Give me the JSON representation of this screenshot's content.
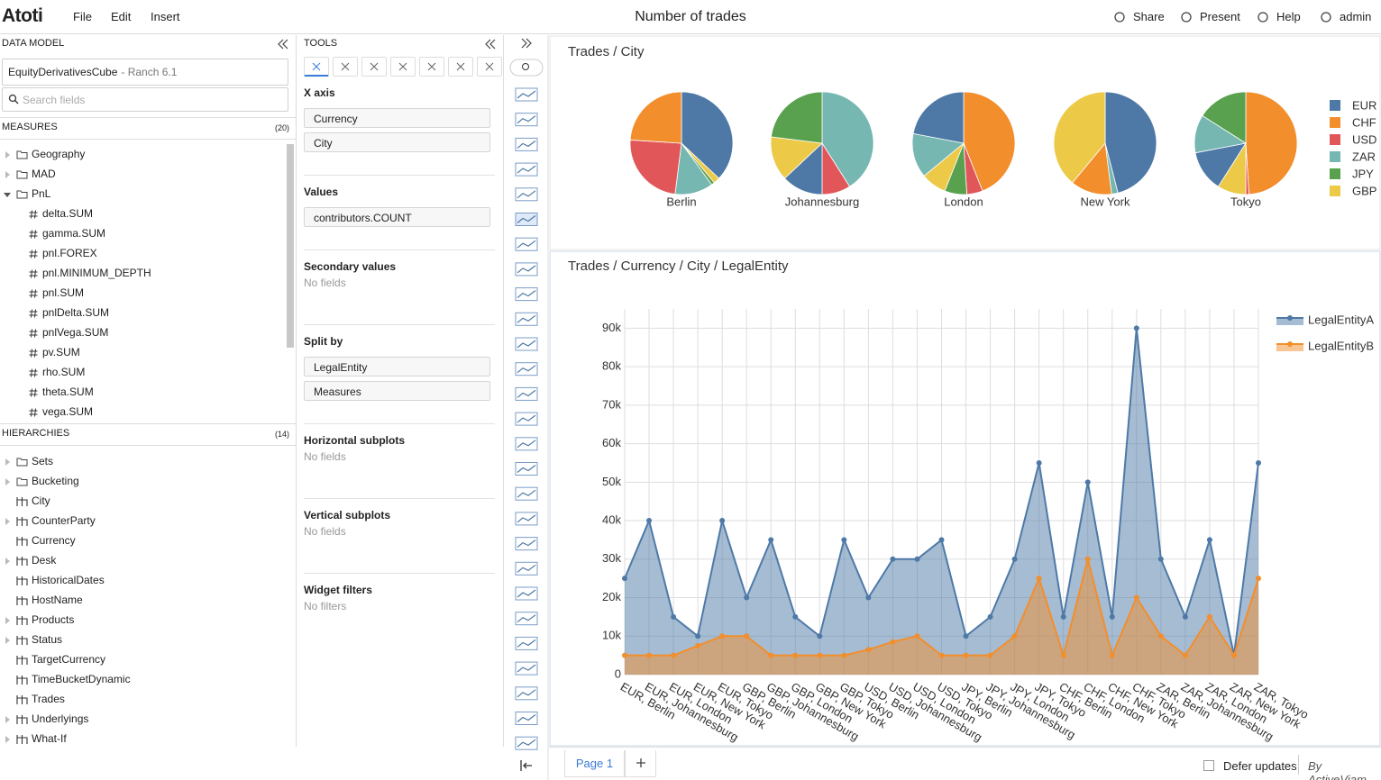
{
  "header": {
    "logo": "Atoti",
    "menu": [
      "File",
      "Edit",
      "Insert"
    ],
    "title": "Number of trades",
    "actions": [
      "Share",
      "Present",
      "Help",
      "admin"
    ]
  },
  "data_model": {
    "title": "DATA MODEL",
    "cube": "EquityDerivativesCube",
    "cube_detail": "- Ranch 6.1",
    "search_placeholder": "Search fields",
    "measures": {
      "label": "MEASURES",
      "count": "(20)",
      "folders": [
        "Geography",
        "MAD",
        "PnL"
      ],
      "items": [
        "delta.SUM",
        "gamma.SUM",
        "pnl.FOREX",
        "pnl.MINIMUM_DEPTH",
        "pnl.SUM",
        "pnlDelta.SUM",
        "pnlVega.SUM",
        "pv.SUM",
        "rho.SUM",
        "theta.SUM",
        "vega.SUM"
      ]
    },
    "hierarchies": {
      "label": "HIERARCHIES",
      "count": "(14)",
      "folders": [
        "Sets",
        "Bucketing"
      ],
      "items": [
        "City",
        "CounterParty",
        "Currency",
        "Desk",
        "HistoricalDates",
        "HostName",
        "Products",
        "Status",
        "TargetCurrency",
        "TimeBucketDynamic",
        "Trades",
        "Underlyings",
        "What-If"
      ]
    }
  },
  "tools": {
    "title": "TOOLS",
    "sections": [
      {
        "label": "X axis",
        "fields": [
          "Currency",
          "City"
        ]
      },
      {
        "label": "Values",
        "fields": [
          "contributors.COUNT"
        ]
      },
      {
        "label": "Secondary values",
        "empty": "No fields"
      },
      {
        "label": "Split by",
        "fields": [
          "LegalEntity",
          "Measures"
        ]
      },
      {
        "label": "Horizontal subplots",
        "empty": "No fields"
      },
      {
        "label": "Vertical subplots",
        "empty": "No fields"
      },
      {
        "label": "Widget filters",
        "empty": "No filters"
      }
    ]
  },
  "footer": {
    "tab": "Page 1",
    "defer": "Defer updates",
    "brand": "By ActiveViam"
  },
  "chart_data": [
    {
      "type": "pie",
      "title": "Trades / City",
      "legend": {
        "position": "right",
        "entries": [
          "EUR",
          "CHF",
          "USD",
          "ZAR",
          "JPY",
          "GBP"
        ],
        "colors": [
          "#4e79a7",
          "#f28e2b",
          "#e15759",
          "#76b7b2",
          "#59a14f",
          "#edc948"
        ]
      },
      "pies": [
        {
          "label": "Berlin",
          "categories": [
            "EUR",
            "GBP",
            "JPY",
            "ZAR",
            "USD",
            "CHF"
          ],
          "values": [
            37,
            2,
            1,
            12,
            24,
            24
          ]
        },
        {
          "label": "Johannesburg",
          "categories": [
            "ZAR",
            "USD",
            "EUR",
            "GBP",
            "JPY"
          ],
          "values": [
            41,
            9,
            13,
            14,
            23
          ]
        },
        {
          "label": "London",
          "categories": [
            "CHF",
            "USD",
            "JPY",
            "GBP",
            "ZAR",
            "EUR"
          ],
          "values": [
            44,
            5,
            7,
            8,
            14,
            22
          ]
        },
        {
          "label": "New York",
          "categories": [
            "EUR",
            "ZAR",
            "CHF",
            "GBP"
          ],
          "values": [
            46,
            2,
            13,
            39
          ]
        },
        {
          "label": "Tokyo",
          "categories": [
            "CHF",
            "USD",
            "GBP",
            "EUR",
            "ZAR",
            "JPY"
          ],
          "values": [
            49,
            1,
            9,
            13,
            12,
            16
          ]
        }
      ]
    },
    {
      "type": "area",
      "title": "Trades / Currency / City / LegalEntity",
      "categories": [
        "EUR, Berlin",
        "EUR, Johannesburg",
        "EUR, London",
        "EUR, New York",
        "EUR, Tokyo",
        "GBP, Berlin",
        "GBP, Johannesburg",
        "GBP, London",
        "GBP, New York",
        "GBP, Tokyo",
        "USD, Berlin",
        "USD, Johannesburg",
        "USD, London",
        "USD, Tokyo",
        "JPY, Berlin",
        "JPY, Johannesburg",
        "JPY, London",
        "JPY, Tokyo",
        "CHF, Berlin",
        "CHF, London",
        "CHF, New York",
        "CHF, Tokyo",
        "ZAR, Berlin",
        "ZAR, Johannesburg",
        "ZAR, London",
        "ZAR, New York",
        "ZAR, Tokyo"
      ],
      "series": [
        {
          "name": "LegalEntityA",
          "color": "#4e79a7",
          "values": [
            25000,
            40000,
            15000,
            10000,
            40000,
            20000,
            35000,
            15000,
            10000,
            35000,
            20000,
            30000,
            30000,
            35000,
            10000,
            15000,
            30000,
            55000,
            15000,
            50000,
            15000,
            90000,
            30000,
            15000,
            35000,
            5000,
            55000
          ]
        },
        {
          "name": "LegalEntityB",
          "color": "#f28e2b",
          "values": [
            5000,
            5000,
            5000,
            7500,
            10000,
            10000,
            5000,
            5000,
            5000,
            5000,
            6500,
            8500,
            10000,
            5000,
            5000,
            5000,
            10000,
            25000,
            5000,
            30000,
            5000,
            20000,
            10000,
            5000,
            15000,
            5000,
            25000
          ]
        }
      ],
      "ylim": [
        0,
        95000
      ],
      "yticks": [
        0,
        {
          "value": 10000,
          "label": "10k"
        },
        {
          "value": 20000,
          "label": "20k"
        },
        {
          "value": 30000,
          "label": "30k"
        },
        {
          "value": 40000,
          "label": "40k"
        },
        {
          "value": 50000,
          "label": "50k"
        },
        {
          "value": 60000,
          "label": "60k"
        },
        {
          "value": 70000,
          "label": "70k"
        },
        {
          "value": 80000,
          "label": "80k"
        },
        {
          "value": 90000,
          "label": "90k"
        }
      ],
      "grid": true,
      "legend": "top-right"
    }
  ]
}
